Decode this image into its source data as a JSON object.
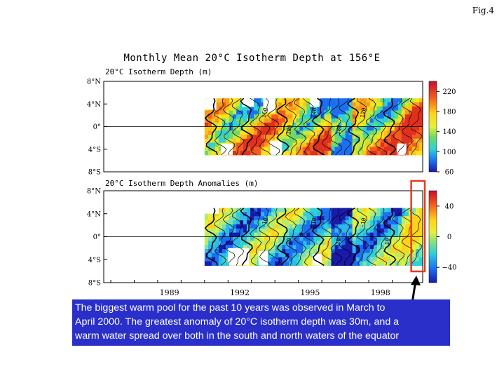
{
  "figure_label": "Fig.4",
  "chart_data": [
    {
      "type": "heatmap",
      "title": "Monthly Mean 20°C Isotherm Depth at 156°E",
      "panel_title": "20°C Isotherm Depth (m)",
      "y_ticks": [
        "8°N",
        "4°N",
        "0°",
        "4°S",
        "8°S"
      ],
      "ylim": [
        -8,
        8
      ],
      "xlim": [
        1986.7,
        2000.3
      ],
      "colorbar_ticks": [
        220,
        180,
        140,
        100,
        60
      ],
      "colorbar_range": [
        60,
        240
      ],
      "contour_labels": [
        "160",
        "180",
        "140",
        "180",
        "120"
      ],
      "grid": false
    },
    {
      "type": "heatmap",
      "panel_title": "20°C Isotherm Depth Anomalies (m)",
      "y_ticks": [
        "8°N",
        "4°N",
        "0°",
        "4°S",
        "8°S"
      ],
      "x_ticks": [
        "1989",
        "1992",
        "1995",
        "1998"
      ],
      "x_tick_values": [
        1989,
        1992,
        1995,
        1998
      ],
      "ylim": [
        -8,
        8
      ],
      "xlim": [
        1986.7,
        2000.3
      ],
      "colorbar_ticks": [
        40,
        0,
        -40
      ],
      "colorbar_range": [
        -60,
        60
      ],
      "contour_labels": [
        "-10",
        "10",
        "-10",
        "20",
        "-10",
        "10"
      ],
      "highlight_period": [
        1999.9,
        2000.3
      ],
      "grid": false
    }
  ],
  "caption": {
    "lines": [
      "The biggest warm pool for the past 10 years was observed in March to",
      "April 2000.  The greatest anomaly of 20°C isotherm depth was 30m, and a",
      "warm water spread over both in the south and north waters of the equator"
    ]
  },
  "colors": {
    "highlight_box": "#e83a1a",
    "caption_bg": "#2a2fc9",
    "caption_text": "#ffffff"
  }
}
